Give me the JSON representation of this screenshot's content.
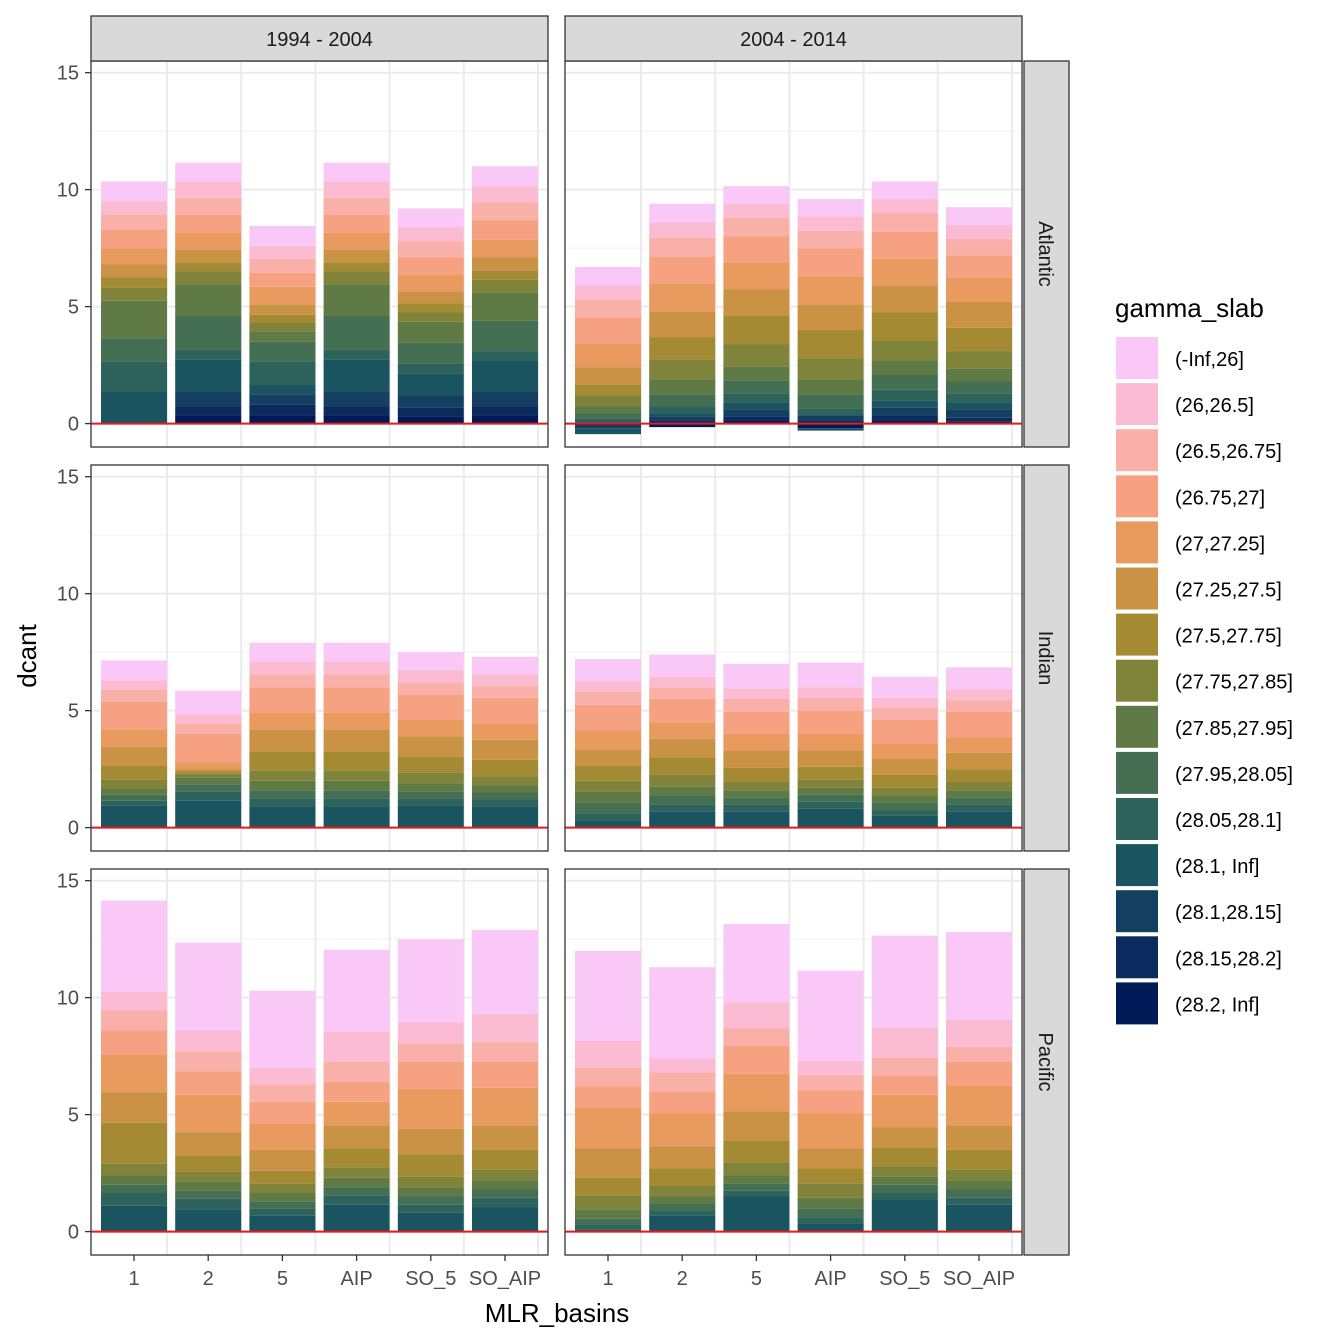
{
  "chart_data": {
    "type": "bar",
    "stacked": true,
    "xlabel": "MLR_basins",
    "ylabel": "dcant",
    "ylim": [
      -1,
      15.5
    ],
    "yticks": [
      0,
      5,
      10,
      15
    ],
    "categories": [
      "1",
      "2",
      "5",
      "AIP",
      "SO_5",
      "SO_AIP"
    ],
    "column_facets": [
      "1994 - 2004",
      "2004 - 2014"
    ],
    "row_facets": [
      "Atlantic",
      "Indian",
      "Pacific"
    ],
    "reference_line": {
      "y": 0,
      "color": "#e41a1c"
    },
    "legend": {
      "title": "gamma_slab",
      "position": "right",
      "entries": [
        {
          "label": "(-Inf,26]",
          "color": "#f9c8f7"
        },
        {
          "label": "(26,26.5]",
          "color": "#fbbcd3"
        },
        {
          "label": "(26.5,26.75]",
          "color": "#f9b0a8"
        },
        {
          "label": "(26.75,27]",
          "color": "#f6a282"
        },
        {
          "label": "(27,27.25]",
          "color": "#e89a5f"
        },
        {
          "label": "(27.25,27.5]",
          "color": "#c99244"
        },
        {
          "label": "(27.5,27.75]",
          "color": "#a48a32"
        },
        {
          "label": "(27.75,27.85]",
          "color": "#80833a"
        },
        {
          "label": "(27.85,27.95]",
          "color": "#5f7a44"
        },
        {
          "label": "(27.95,28.05]",
          "color": "#456f52"
        },
        {
          "label": "(28.05,28.1]",
          "color": "#2e635c"
        },
        {
          "label": "(28.1, Inf]",
          "color": "#1b5461"
        },
        {
          "label": "(28.1,28.15]",
          "color": "#143f61"
        },
        {
          "label": "(28.15,28.2]",
          "color": "#0b2b5e"
        },
        {
          "label": "(28.2, Inf]",
          "color": "#001a57"
        }
      ]
    },
    "panels": [
      {
        "column": "1994 - 2004",
        "row": "Atlantic",
        "bars": [
          {
            "category": "1",
            "segments": [
              0,
              0,
              0,
              0,
              0,
              0,
              0,
              0,
              0,
              0,
              0,
              1.35,
              0,
              0,
              0,
              0,
              0.5,
              0.55,
              0.4,
              0.7,
              0.8,
              0.5,
              0.6,
              1.0,
              0.7,
              0.7,
              0.7,
              0.8
            ]
          },
          {
            "category": "2",
            "segments": [
              0,
              0,
              0,
              0,
              0,
              0,
              0,
              0,
              0,
              0,
              0,
              0,
              0.4,
              0.5,
              0.4
            ]
          }
        ]
      }
    ],
    "stack_order": [
      "(28.2, Inf]",
      "(28.15,28.2]",
      "(28.1,28.15]",
      "(28.1, Inf]",
      "(28.05,28.1]",
      "(27.95,28.05]",
      "(27.85,27.95]",
      "(27.75,27.85]",
      "(27.5,27.75]",
      "(27.25,27.5]",
      "(27,27.25]",
      "(26.75,27]",
      "(26.5,26.75]",
      "(26,26.5]",
      "(-Inf,26]"
    ],
    "series_values": {
      "1994 - 2004|Atlantic": {
        "1": [
          0,
          0,
          0,
          1.35,
          1.3,
          1.0,
          1.6,
          0.55,
          0.45,
          0.55,
          0.7,
          0.8,
          0.65,
          0.55,
          0.85
        ],
        "2": [
          0.35,
          0.4,
          0.6,
          1.4,
          0.4,
          1.45,
          1.35,
          0.55,
          0.4,
          0.55,
          0.7,
          0.8,
          0.7,
          0.7,
          0.8
        ],
        "5": [
          0.35,
          0.45,
          0.45,
          0.4,
          1.0,
          0.85,
          0.45,
          0.35,
          0.35,
          0.45,
          0.75,
          0.6,
          0.6,
          0.55,
          0.85
        ],
        "AIP": [
          0.35,
          0.4,
          0.6,
          1.4,
          0.4,
          1.45,
          1.35,
          0.55,
          0.4,
          0.55,
          0.7,
          0.8,
          0.7,
          0.7,
          0.8
        ],
        "SO_5": [
          0.3,
          0.4,
          0.5,
          0.95,
          0.4,
          0.9,
          0.9,
          0.4,
          0.4,
          0.5,
          0.7,
          0.75,
          0.7,
          0.6,
          0.8
        ],
        "SO_AIP": [
          0.35,
          0.4,
          0.6,
          1.35,
          0.4,
          1.3,
          1.2,
          0.55,
          0.4,
          0.55,
          0.75,
          0.85,
          0.75,
          0.7,
          0.85
        ]
      },
      "2004 - 2014|Atlantic": {
        "1": [
          0,
          -0.1,
          -0.1,
          -0.25,
          0.2,
          0.25,
          0.3,
          0.45,
          0.45,
          0.75,
          1.0,
          1.15,
          0.75,
          0.6,
          0.8
        ],
        "2": [
          -0.15,
          0.15,
          0.15,
          0.15,
          0.3,
          0.5,
          0.65,
          0.85,
          0.95,
          1.1,
          1.2,
          1.15,
          0.8,
          0.65,
          0.8
        ],
        "5": [
          0.15,
          0.15,
          0.3,
          0.3,
          0.4,
          0.55,
          0.6,
          0.95,
          1.2,
          1.15,
          1.15,
          1.1,
          0.8,
          0.6,
          0.75
        ],
        "AIP": [
          -0.2,
          0.15,
          0.2,
          -0.1,
          0.3,
          0.6,
          0.65,
          0.9,
          1.2,
          1.1,
          1.2,
          1.2,
          0.75,
          0.6,
          0.75
        ],
        "SO_5": [
          0.15,
          0.2,
          0.35,
          0.3,
          0.45,
          0.65,
          0.6,
          0.85,
          1.2,
          1.15,
          1.15,
          1.15,
          0.8,
          0.6,
          0.75
        ],
        "SO_AIP": [
          0.1,
          0.15,
          0.35,
          0.3,
          0.4,
          0.5,
          0.55,
          0.75,
          1.0,
          1.1,
          1.05,
          0.95,
          0.7,
          0.6,
          0.75
        ]
      },
      "1994 - 2004|Indian": {
        "1": [
          0,
          0,
          0,
          0.95,
          0.2,
          0.25,
          0.25,
          0.4,
          0.6,
          0.8,
          0.75,
          1.2,
          0.5,
          0.4,
          0.85
        ],
        "2": [
          0,
          0,
          0,
          1.15,
          0.4,
          0.3,
          0.3,
          0.15,
          0.1,
          0.1,
          0.3,
          1.2,
          0.45,
          0.4,
          1.0
        ],
        "5": [
          0,
          0,
          0,
          0.9,
          0.35,
          0.35,
          0.4,
          0.45,
          0.8,
          0.95,
          0.7,
          1.1,
          0.55,
          0.55,
          0.8
        ],
        "AIP": [
          0,
          0,
          0,
          0.9,
          0.35,
          0.35,
          0.4,
          0.45,
          0.8,
          0.95,
          0.7,
          1.1,
          0.55,
          0.55,
          0.8
        ],
        "SO_5": [
          0,
          0,
          0,
          0.95,
          0.3,
          0.3,
          0.35,
          0.45,
          0.7,
          0.85,
          0.7,
          1.1,
          0.5,
          0.55,
          0.75
        ],
        "SO_AIP": [
          0,
          0,
          0,
          0.9,
          0.3,
          0.3,
          0.3,
          0.4,
          0.7,
          0.85,
          0.7,
          1.1,
          0.5,
          0.5,
          0.75
        ]
      },
      "2004 - 2014|Indian": {
        "1": [
          0,
          0,
          0,
          0.3,
          0.3,
          0.45,
          0.5,
          0.45,
          0.65,
          0.7,
          0.8,
          1.1,
          0.55,
          0.45,
          0.95
        ],
        "2": [
          0,
          0,
          0,
          0.7,
          0.3,
          0.35,
          0.4,
          0.5,
          0.75,
          0.8,
          0.7,
          1.0,
          0.5,
          0.45,
          0.95
        ],
        "5": [
          0,
          0,
          0,
          0.7,
          0.3,
          0.3,
          0.3,
          0.35,
          0.6,
          0.75,
          0.7,
          0.95,
          0.55,
          0.45,
          1.05
        ],
        "AIP": [
          0,
          0,
          0,
          0.8,
          0.3,
          0.3,
          0.3,
          0.35,
          0.55,
          0.7,
          0.7,
          1.0,
          0.55,
          0.45,
          1.05
        ],
        "SO_5": [
          0,
          0,
          0,
          0.5,
          0.25,
          0.3,
          0.3,
          0.35,
          0.55,
          0.7,
          0.65,
          1.0,
          0.55,
          0.4,
          0.9
        ],
        "SO_AIP": [
          0,
          0,
          0,
          0.7,
          0.3,
          0.3,
          0.3,
          0.35,
          0.55,
          0.7,
          0.65,
          1.1,
          0.5,
          0.45,
          0.95
        ]
      },
      "1994 - 2004|Pacific": {
        "1": [
          0,
          0,
          0,
          1.1,
          0.55,
          0.35,
          0.4,
          0.5,
          1.75,
          1.3,
          1.6,
          1.05,
          0.85,
          0.8,
          3.9
        ],
        "2": [
          0,
          0,
          0,
          0.95,
          0.45,
          0.35,
          0.4,
          0.4,
          0.7,
          1.0,
          1.6,
          1.0,
          0.85,
          0.9,
          3.75
        ],
        "5": [
          0,
          0,
          0,
          0.7,
          0.3,
          0.3,
          0.35,
          0.4,
          0.55,
          0.9,
          1.1,
          0.95,
          0.75,
          0.7,
          3.3
        ],
        "AIP": [
          0,
          0,
          0,
          1.15,
          0.4,
          0.35,
          0.4,
          0.45,
          0.8,
          1.0,
          1.0,
          0.85,
          0.85,
          1.3,
          3.5
        ],
        "SO_5": [
          0,
          0,
          0,
          0.8,
          0.35,
          0.35,
          0.4,
          0.45,
          0.95,
          1.1,
          1.7,
          1.15,
          0.8,
          0.9,
          3.55
        ],
        "SO_AIP": [
          0,
          0,
          0,
          1.05,
          0.4,
          0.35,
          0.4,
          0.45,
          0.85,
          1.05,
          1.6,
          1.1,
          0.85,
          1.2,
          3.6
        ]
      },
      "2004 - 2014|Pacific": {
        "1": [
          0,
          0,
          0,
          0.1,
          0.2,
          0.25,
          0.4,
          0.6,
          0.75,
          1.25,
          1.75,
          0.9,
          0.8,
          1.15,
          3.85
        ],
        "2": [
          0,
          0,
          0,
          0.7,
          0.2,
          0.3,
          0.3,
          0.45,
          0.75,
          0.95,
          1.4,
          0.95,
          0.8,
          0.6,
          3.9
        ],
        "5": [
          0,
          0,
          0,
          1.5,
          0.25,
          0.3,
          0.35,
          0.55,
          0.95,
          1.25,
          1.6,
          1.2,
          0.75,
          1.1,
          3.35
        ],
        "AIP": [
          0,
          0,
          0,
          0.35,
          0.25,
          0.4,
          0.45,
          0.6,
          0.65,
          0.85,
          1.5,
          1.0,
          0.65,
          0.6,
          3.85
        ],
        "SO_5": [
          0,
          0,
          0,
          1.35,
          0.3,
          0.35,
          0.35,
          0.45,
          0.8,
          0.85,
          1.4,
          0.8,
          0.8,
          1.25,
          3.95
        ],
        "SO_AIP": [
          0,
          0,
          0,
          1.15,
          0.3,
          0.35,
          0.4,
          0.45,
          0.85,
          1.05,
          1.7,
          1.0,
          0.65,
          1.15,
          3.75
        ]
      }
    }
  }
}
